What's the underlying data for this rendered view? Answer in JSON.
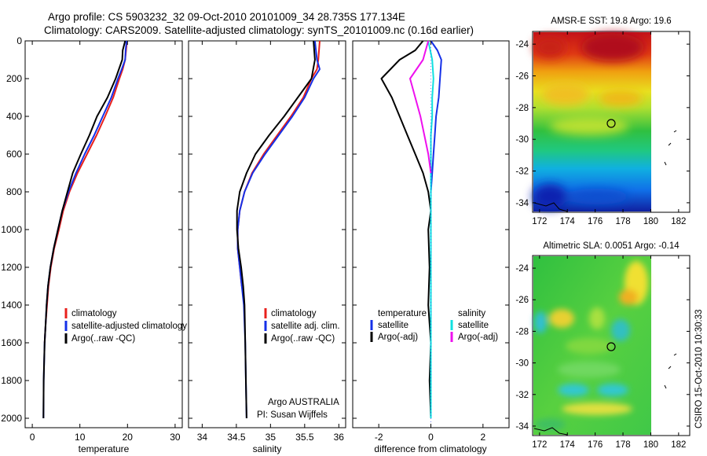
{
  "title_line1": "Argo profile: CS 5903232_32 09-Oct-2010 20101009_34 28.735S 177.134E",
  "title_line2": "Climatology: CARS2009. Satellite-adjusted climatology: synTS_20101009.nc (0.16d earlier)",
  "footer": "CSIRO 15-Oct-2010 10:30:33",
  "credit_line1": "Argo AUSTRALIA",
  "credit_line2": "PI: Susan Wijffels",
  "colors": {
    "climatology": "#e8201c",
    "satellite": "#1530e8",
    "argo": "#000000",
    "salinity_satellite": "#10e0e0",
    "salinity_argo": "#ee10ee"
  },
  "chart_data": [
    {
      "type": "line",
      "xlabel": "temperature",
      "ylabel": "",
      "xlim": [
        -1.5,
        31.5
      ],
      "ylim": [
        2050,
        0
      ],
      "xticks": [
        "0",
        "10",
        "20",
        "30"
      ],
      "yticks": [
        "0",
        "200",
        "400",
        "600",
        "800",
        "1000",
        "1200",
        "1400",
        "1600",
        "1800",
        "2000"
      ],
      "legend": [
        "climatology",
        "satellite-adjusted climatology",
        "Argo(..raw -QC)"
      ],
      "series": [
        {
          "name": "climatology",
          "color": "#e8201c",
          "x": [
            19.9,
            19.7,
            19.5,
            19.0,
            18.3,
            17.0,
            15.3,
            13.5,
            11.5,
            9.5,
            7.8,
            6.5,
            5.6,
            4.6,
            3.9,
            3.4,
            3.1,
            2.8,
            2.6,
            2.5
          ],
          "y": [
            0,
            50,
            100,
            150,
            200,
            300,
            400,
            500,
            600,
            700,
            800,
            900,
            1000,
            1100,
            1200,
            1300,
            1400,
            1500,
            1600,
            1600
          ]
        },
        {
          "name": "satellite-adjusted climatology",
          "color": "#1530e8",
          "x": [
            19.8,
            19.6,
            19.5,
            18.8,
            18.0,
            16.6,
            14.8,
            13.0,
            11.0,
            9.2,
            7.6,
            6.3,
            5.4,
            4.5,
            3.8,
            3.3,
            3.0,
            2.8,
            2.6,
            2.5,
            2.4,
            2.35
          ],
          "y": [
            0,
            50,
            100,
            150,
            200,
            300,
            400,
            500,
            600,
            700,
            800,
            900,
            1000,
            1100,
            1200,
            1300,
            1400,
            1500,
            1600,
            1700,
            1800,
            2000
          ]
        },
        {
          "name": "Argo(..raw -QC)",
          "color": "#000000",
          "x": [
            19.5,
            19.0,
            18.9,
            18.2,
            17.5,
            15.8,
            13.6,
            12.0,
            10.2,
            8.5,
            7.4,
            6.3,
            5.4,
            4.5,
            3.8,
            3.3,
            3.0,
            2.8,
            2.6,
            2.5,
            2.4,
            2.35
          ],
          "y": [
            0,
            50,
            100,
            150,
            200,
            300,
            400,
            500,
            600,
            700,
            800,
            900,
            1000,
            1100,
            1200,
            1300,
            1400,
            1500,
            1600,
            1700,
            1800,
            2000
          ]
        }
      ]
    },
    {
      "type": "line",
      "xlabel": "salinity",
      "ylabel": "",
      "xlim": [
        33.8,
        36.1
      ],
      "ylim": [
        2050,
        0
      ],
      "xticks": [
        "34",
        "34.5",
        "35",
        "35.5",
        "36"
      ],
      "legend": [
        "climatology",
        "satellite adj. clim.",
        "Argo(..raw -QC)"
      ],
      "series": [
        {
          "name": "climatology",
          "color": "#e8201c",
          "x": [
            35.72,
            35.7,
            35.68,
            35.6,
            35.48,
            35.3,
            35.1,
            34.9,
            34.73,
            34.62,
            34.55,
            34.52,
            34.52,
            34.55,
            34.58
          ],
          "y": [
            0,
            100,
            150,
            200,
            300,
            400,
            500,
            600,
            700,
            800,
            900,
            1000,
            1100,
            1200,
            1300
          ]
        },
        {
          "name": "satellite adj. clim.",
          "color": "#1530e8",
          "x": [
            35.65,
            35.68,
            35.72,
            35.63,
            35.5,
            35.32,
            35.12,
            34.92,
            34.74,
            34.62,
            34.55,
            34.52,
            34.52,
            34.55,
            34.58,
            34.61,
            34.63,
            34.64,
            34.65
          ],
          "y": [
            0,
            100,
            150,
            200,
            300,
            400,
            500,
            600,
            700,
            800,
            900,
            1000,
            1100,
            1200,
            1300,
            1400,
            1600,
            1800,
            2000
          ]
        },
        {
          "name": "Argo(..raw -QC)",
          "color": "#000000",
          "x": [
            35.63,
            35.65,
            35.6,
            35.4,
            35.2,
            34.98,
            34.78,
            34.65,
            34.55,
            34.51,
            34.51,
            34.53,
            34.57,
            34.6,
            34.62,
            34.63,
            34.64,
            34.65
          ],
          "y": [
            0,
            100,
            200,
            300,
            400,
            500,
            600,
            700,
            800,
            900,
            1000,
            1100,
            1200,
            1300,
            1400,
            1600,
            1800,
            2000
          ]
        }
      ]
    },
    {
      "type": "line",
      "xlabel": "difference from climatology",
      "ylabel": "",
      "xlim": [
        -3.0,
        3.0
      ],
      "ylim": [
        2050,
        0
      ],
      "xticks": [
        "-2",
        "0",
        "2"
      ],
      "legend_groups": [
        "temperature",
        "salinity"
      ],
      "legend": [
        "satellite",
        "Argo(-adj)",
        "satellite",
        "Argo(-adj)"
      ],
      "series": [
        {
          "name": "temperature satellite",
          "color": "#1530e8",
          "x": [
            0.0,
            0.25,
            0.4,
            0.35,
            0.3,
            0.2,
            0.15,
            0.1,
            0.05,
            0.0,
            0.0,
            0.0,
            0.0,
            0.0,
            0.0,
            0.0
          ],
          "y": [
            0,
            50,
            100,
            200,
            300,
            400,
            500,
            600,
            700,
            800,
            900,
            1000,
            1200,
            1500,
            1800,
            2000
          ]
        },
        {
          "name": "temperature Argo(-adj)",
          "color": "#000000",
          "x": [
            -0.3,
            -0.6,
            -1.2,
            -1.9,
            -1.5,
            -1.2,
            -0.9,
            -0.6,
            -0.3,
            -0.1,
            0.0,
            -0.1,
            -0.05,
            -0.1,
            0.0,
            -0.05,
            0.0
          ],
          "y": [
            0,
            50,
            100,
            200,
            300,
            400,
            500,
            600,
            700,
            800,
            900,
            1000,
            1200,
            1400,
            1600,
            1800,
            2000
          ]
        },
        {
          "name": "salinity satellite",
          "color": "#10e0e0",
          "x": [
            -0.1,
            0.05,
            0.1,
            0.05,
            0.05,
            0.0,
            0.0,
            0.0,
            0.0,
            0.0
          ],
          "y": [
            0,
            100,
            200,
            300,
            400,
            500,
            700,
            1000,
            1500,
            2000
          ]
        },
        {
          "name": "salinity Argo(-adj)",
          "color": "#ee10ee",
          "x": [
            -0.1,
            -0.3,
            -0.8,
            -0.6,
            -0.4,
            -0.25,
            -0.1,
            0.0
          ],
          "y": [
            0,
            100,
            200,
            300,
            400,
            500,
            600,
            700
          ]
        }
      ]
    },
    {
      "type": "heatmap",
      "title": "AMSR-E SST: 19.8 Argo: 19.6",
      "xlim": [
        171.5,
        182.8
      ],
      "ylim": [
        -34.6,
        -23.2
      ],
      "xticks": [
        "172",
        "174",
        "176",
        "178",
        "180",
        "182"
      ],
      "yticks": [
        "-24",
        "-26",
        "-28",
        "-30",
        "-32",
        "-34"
      ],
      "marker": {
        "lon": 177.134,
        "lat": -28.735
      }
    },
    {
      "type": "heatmap",
      "title": "Altimetric SLA: 0.0051 Argo: -0.14",
      "xlim": [
        171.5,
        182.8
      ],
      "ylim": [
        -34.6,
        -23.2
      ],
      "xticks": [
        "172",
        "174",
        "176",
        "178",
        "180",
        "182"
      ],
      "yticks": [
        "-24",
        "-26",
        "-28",
        "-30",
        "-32",
        "-34"
      ],
      "marker": {
        "lon": 177.134,
        "lat": -28.735
      }
    }
  ]
}
